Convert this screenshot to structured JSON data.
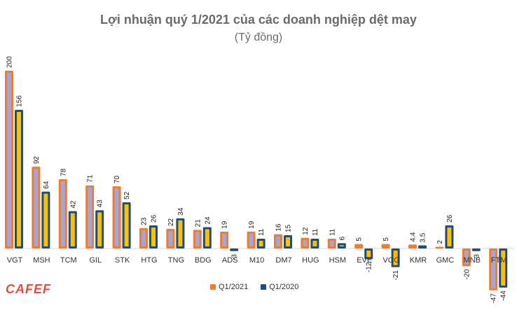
{
  "title": "Lợi nhuận quý 1/2021 của các doanh nghiệp dệt may",
  "subtitle": "(Tỷ đồng)",
  "logo_text": "CAFEF",
  "colors": {
    "q2021_outer": "#ed7d31",
    "q2021_inner": "#a9a4d6",
    "q2020_outer": "#1f4e79",
    "q2020_inner": "#ffc000",
    "axis": "#d9d9d9"
  },
  "chart_data": {
    "type": "bar",
    "categories": [
      "VGT",
      "MSH",
      "TCM",
      "GIL",
      "STK",
      "HTG",
      "TNG",
      "BDG",
      "ADS",
      "M10",
      "DM7",
      "HUG",
      "HSM",
      "EVE",
      "VGG",
      "KMR",
      "GMC",
      "MNB",
      "FTM"
    ],
    "series": [
      {
        "name": "Q1/2021",
        "values": [
          200,
          92,
          78,
          71,
          70,
          23,
          22,
          21,
          19,
          19,
          16,
          12,
          11,
          5,
          5,
          4.4,
          2,
          -20,
          -47
        ]
      },
      {
        "name": "Q1/2020",
        "values": [
          156,
          64,
          42,
          43,
          52,
          26,
          34,
          24,
          -3,
          11,
          15,
          11,
          6,
          -12,
          -21,
          3.5,
          26,
          -3,
          -44
        ]
      }
    ],
    "value_labels": {
      "Q1/2021": [
        "200",
        "92",
        "78",
        "71",
        "70",
        "23",
        "22",
        "21",
        "19",
        "19",
        "16",
        "12",
        "11",
        "5",
        "5",
        "4.4",
        "2",
        "-20",
        "-47"
      ],
      "Q1/2020": [
        "156",
        "64",
        "42",
        "43",
        "52",
        "26",
        "34",
        "24",
        "-3",
        "11",
        "15",
        "11",
        "6",
        "-12",
        "-21",
        "3.5",
        "26",
        "-3",
        "-44"
      ]
    },
    "ylim": [
      -50,
      205
    ],
    "grid": false,
    "legend": "bottom-center"
  }
}
